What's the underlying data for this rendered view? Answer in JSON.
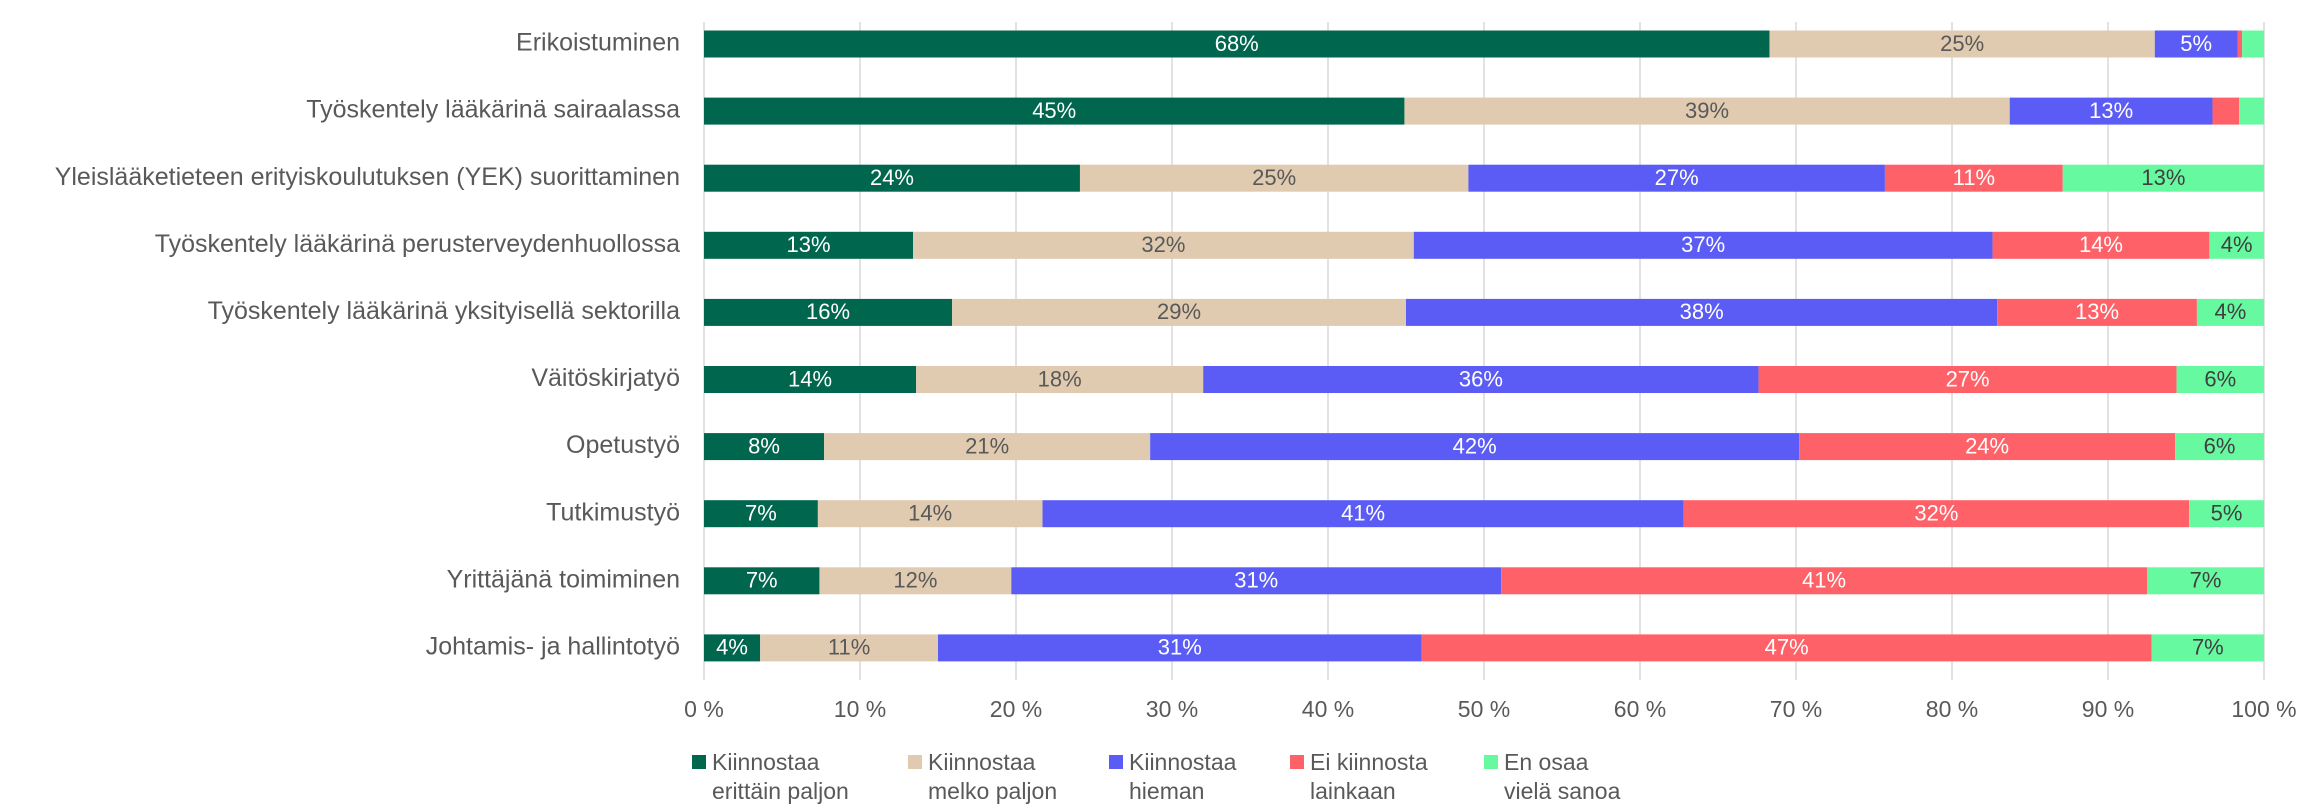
{
  "chart_data": {
    "type": "stacked_barh",
    "categories": [
      "Erikoistuminen",
      "Työskentely lääkärinä sairaalassa",
      "Yleislääketieteen erityiskoulutuksen (YEK) suorittaminen",
      "Työskentely lääkärinä perusterveydenhuollossa",
      "Työskentely lääkärinä yksityisellä sektorilla",
      "Väitöskirjatyö",
      "Opetustyö",
      "Tutkimustyö",
      "Yrittäjänä toimiminen",
      "Johtamis- ja hallintotyö"
    ],
    "series": [
      {
        "name": "Kiinnostaa\nerittäin paljon",
        "color": "#00664e",
        "label_color": "#ffffff",
        "values": [
          68.3,
          44.9,
          24.1,
          13.4,
          15.9,
          13.6,
          7.7,
          7.3,
          7.4,
          3.6
        ],
        "value_labels": [
          "68%",
          "45%",
          "24%",
          "13%",
          "16%",
          "14%",
          "8%",
          "7%",
          "7%",
          "4%"
        ]
      },
      {
        "name": "Kiinnostaa\nmelko paljon",
        "color": "#e0cab0",
        "label_color": "#595959",
        "values": [
          24.7,
          38.8,
          24.9,
          32.1,
          29.1,
          18.4,
          20.9,
          14.4,
          12.3,
          11.4
        ],
        "value_labels": [
          "25%",
          "39%",
          "25%",
          "32%",
          "29%",
          "18%",
          "21%",
          "14%",
          "12%",
          "11%"
        ]
      },
      {
        "name": "Kiinnostaa\nhieman",
        "color": "#5b5cf6",
        "label_color": "#ffffff",
        "values": [
          5.3,
          13.0,
          26.7,
          37.1,
          37.9,
          35.6,
          41.6,
          41.1,
          31.4,
          31.0
        ],
        "value_labels": [
          "5%",
          "13%",
          "27%",
          "37%",
          "38%",
          "36%",
          "42%",
          "41%",
          "31%",
          "31%"
        ]
      },
      {
        "name": "Ei kiinnosta\nlainkaan",
        "color": "#ff6168",
        "label_color": "#ffffff",
        "values": [
          0.3,
          1.7,
          11.4,
          13.9,
          12.8,
          26.8,
          24.1,
          32.4,
          41.4,
          46.8
        ],
        "value_labels": [
          null,
          null,
          "11%",
          "14%",
          "13%",
          "27%",
          "24%",
          "32%",
          "41%",
          "47%"
        ]
      },
      {
        "name": "En osaa\nvielä sanoa",
        "color": "#66f9a0",
        "label_color": "#404040",
        "values": [
          1.4,
          1.6,
          12.9,
          3.5,
          4.3,
          5.6,
          5.7,
          4.8,
          7.5,
          7.2
        ],
        "value_labels": [
          null,
          null,
          "13%",
          "4%",
          "4%",
          "6%",
          "6%",
          "5%",
          "7%",
          "7%"
        ]
      }
    ],
    "xlim": [
      0,
      100
    ],
    "xticks": [
      {
        "value": 0,
        "label": "0 %"
      },
      {
        "value": 10,
        "label": "10 %"
      },
      {
        "value": 20,
        "label": "20 %"
      },
      {
        "value": 30,
        "label": "30 %"
      },
      {
        "value": 40,
        "label": "40 %"
      },
      {
        "value": 50,
        "label": "50 %"
      },
      {
        "value": 60,
        "label": "60 %"
      },
      {
        "value": 70,
        "label": "70 %"
      },
      {
        "value": 80,
        "label": "80 %"
      },
      {
        "value": 90,
        "label": "90 %"
      },
      {
        "value": 100,
        "label": "100 %"
      }
    ],
    "grid": true,
    "legend": "bottom"
  }
}
